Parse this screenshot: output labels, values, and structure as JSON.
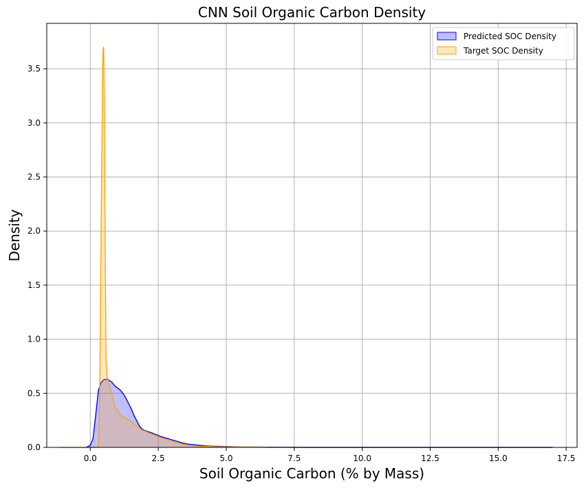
{
  "chart_data": {
    "type": "area",
    "title": "CNN Soil Organic Carbon Density",
    "xlabel": "Soil Organic Carbon (% by Mass)",
    "ylabel": "Density",
    "xlim": [
      -1.6,
      17.9
    ],
    "ylim": [
      0,
      3.92
    ],
    "xticks": [
      0.0,
      2.5,
      5.0,
      7.5,
      10.0,
      12.5,
      15.0,
      17.5
    ],
    "xtick_labels": [
      "0.0",
      "2.5",
      "5.0",
      "7.5",
      "10.0",
      "12.5",
      "15.0",
      "17.5"
    ],
    "yticks": [
      0.0,
      0.5,
      1.0,
      1.5,
      2.0,
      2.5,
      3.0,
      3.5
    ],
    "ytick_labels": [
      "0.0",
      "0.5",
      "1.0",
      "1.5",
      "2.0",
      "2.5",
      "3.0",
      "3.5"
    ],
    "grid": true,
    "legend_position": "top-right",
    "series": [
      {
        "name": "Predicted SOC Density",
        "line_color": "#0000ff",
        "fill_color": "#0000ff",
        "fill_opacity": 0.25,
        "x": [
          -0.15,
          0.0,
          0.1,
          0.2,
          0.3,
          0.4,
          0.5,
          0.6,
          0.7,
          0.8,
          0.9,
          1.0,
          1.1,
          1.2,
          1.3,
          1.4,
          1.5,
          1.6,
          1.7,
          1.8,
          1.9,
          2.0,
          2.2,
          2.4,
          2.6,
          2.8,
          3.0,
          3.2,
          3.4,
          3.6,
          3.8,
          4.0,
          4.3,
          4.6,
          5.0,
          5.3,
          5.6,
          6.0,
          6.5,
          7.0,
          8.0,
          10.0,
          12.0,
          14.0,
          16.0,
          17.0
        ],
        "y": [
          0.0,
          0.02,
          0.08,
          0.3,
          0.53,
          0.6,
          0.625,
          0.63,
          0.62,
          0.6,
          0.57,
          0.55,
          0.53,
          0.5,
          0.46,
          0.41,
          0.36,
          0.3,
          0.25,
          0.2,
          0.17,
          0.155,
          0.14,
          0.12,
          0.1,
          0.085,
          0.07,
          0.055,
          0.04,
          0.03,
          0.025,
          0.02,
          0.013,
          0.01,
          0.008,
          0.006,
          0.004,
          0.003,
          0.002,
          0.001,
          0.0,
          0.0,
          0.0,
          0.0,
          0.0,
          0.0
        ]
      },
      {
        "name": "Target SOC Density",
        "line_color": "#ffa500",
        "fill_color": "#ffa500",
        "fill_opacity": 0.25,
        "x": [
          -1.1,
          0.0,
          0.3,
          0.32,
          0.35,
          0.38,
          0.42,
          0.45,
          0.47,
          0.49,
          0.5,
          0.52,
          0.55,
          0.58,
          0.62,
          0.7,
          0.8,
          0.9,
          1.0,
          1.1,
          1.2,
          1.3,
          1.4,
          1.5,
          1.6,
          1.7,
          1.8,
          1.9,
          2.0,
          2.2,
          2.4,
          2.6,
          2.8,
          3.0,
          3.2,
          3.4,
          3.6,
          3.8,
          4.0,
          4.3,
          4.6,
          5.0,
          5.5,
          5.8,
          6.2,
          6.6
        ],
        "y": [
          0.0,
          0.0,
          0.0,
          0.1,
          0.6,
          1.5,
          2.6,
          3.4,
          3.68,
          3.7,
          3.6,
          3.0,
          1.8,
          0.8,
          0.65,
          0.58,
          0.48,
          0.38,
          0.34,
          0.3,
          0.28,
          0.27,
          0.25,
          0.24,
          0.22,
          0.2,
          0.18,
          0.16,
          0.15,
          0.13,
          0.11,
          0.09,
          0.07,
          0.055,
          0.04,
          0.03,
          0.02,
          0.015,
          0.01,
          0.008,
          0.006,
          0.005,
          0.004,
          0.004,
          0.002,
          0.0
        ]
      }
    ]
  }
}
